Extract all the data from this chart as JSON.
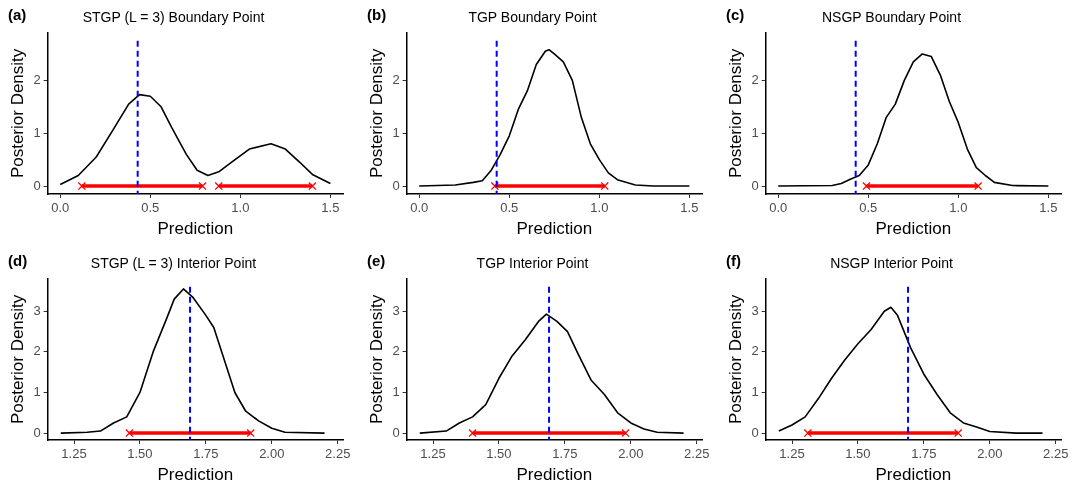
{
  "chart_data": [
    {
      "type": "line",
      "title": "STGP (L = 3) Boundary Point",
      "annotations": [
        "(a)"
      ],
      "xlabel": "Prediction",
      "ylabel": "Posterior Density",
      "xlim": [
        -0.07,
        1.57
      ],
      "xticks": [
        {
          "value": 0,
          "label": "0.0"
        },
        0.5,
        {
          "value": 1,
          "label": "1.0"
        },
        1.5
      ],
      "ylim": [
        -0.15,
        2.9
      ],
      "yticks": [
        0,
        1,
        2
      ],
      "grid": false,
      "legend": false,
      "series": [
        {
          "color": "#000000",
          "marker": "none",
          "x": [
            0,
            0.1,
            0.2,
            0.3,
            0.38,
            0.44,
            0.5,
            0.56,
            0.62,
            0.7,
            0.76,
            0.82,
            0.88,
            0.95,
            1.05,
            1.17,
            1.25,
            1.33,
            1.4,
            1.5
          ],
          "values": [
            0.03,
            0.2,
            0.55,
            1.1,
            1.55,
            1.73,
            1.7,
            1.5,
            1.1,
            0.6,
            0.3,
            0.2,
            0.27,
            0.45,
            0.7,
            0.8,
            0.7,
            0.45,
            0.22,
            0.05
          ]
        },
        {
          "color": "#ff0000",
          "marker": "cross",
          "x": [
            0.12,
            0.79
          ],
          "values": [
            0,
            0
          ]
        },
        {
          "color": "#ff0000",
          "marker": "cross",
          "x": [
            0.88,
            1.4
          ],
          "values": [
            0,
            0
          ]
        }
      ],
      "ref_lines": [
        {
          "axis": "x",
          "value": 0.43,
          "color": "#0000ff",
          "line_style": "dashed"
        }
      ]
    },
    {
      "type": "line",
      "title": "TGP Boundary Point",
      "annotations": [
        "(b)"
      ],
      "xlabel": "Prediction",
      "ylabel": "Posterior Density",
      "xlim": [
        -0.07,
        1.57
      ],
      "xticks": [
        {
          "value": 0,
          "label": "0.0"
        },
        0.5,
        {
          "value": 1,
          "label": "1.0"
        },
        1.5
      ],
      "ylim": [
        -0.15,
        2.9
      ],
      "yticks": [
        0,
        1,
        2
      ],
      "grid": false,
      "legend": false,
      "series": [
        {
          "color": "#000000",
          "marker": "none",
          "x": [
            0,
            0.2,
            0.3,
            0.35,
            0.4,
            0.45,
            0.5,
            0.55,
            0.6,
            0.65,
            0.7,
            0.72,
            0.75,
            0.8,
            0.85,
            0.9,
            0.95,
            1.0,
            1.05,
            1.1,
            1.2,
            1.3,
            1.5
          ],
          "values": [
            0,
            0.02,
            0.07,
            0.1,
            0.3,
            0.6,
            0.95,
            1.45,
            1.8,
            2.3,
            2.55,
            2.58,
            2.5,
            2.35,
            2.0,
            1.3,
            0.8,
            0.5,
            0.25,
            0.12,
            0.02,
            0,
            0
          ]
        },
        {
          "color": "#ff0000",
          "marker": "cross",
          "x": [
            0.42,
            1.03
          ],
          "values": [
            0,
            0
          ]
        }
      ],
      "ref_lines": [
        {
          "axis": "x",
          "value": 0.43,
          "color": "#0000ff",
          "line_style": "dashed"
        }
      ]
    },
    {
      "type": "line",
      "title": "NSGP Boundary Point",
      "annotations": [
        "(c)"
      ],
      "xlabel": "Prediction",
      "ylabel": "Posterior Density",
      "xlim": [
        -0.07,
        1.57
      ],
      "xticks": [
        {
          "value": 0,
          "label": "0.0"
        },
        0.5,
        {
          "value": 1,
          "label": "1.0"
        },
        1.5
      ],
      "ylim": [
        -0.15,
        2.9
      ],
      "yticks": [
        0,
        1,
        2
      ],
      "grid": false,
      "legend": false,
      "series": [
        {
          "color": "#000000",
          "marker": "none",
          "x": [
            0,
            0.3,
            0.35,
            0.4,
            0.45,
            0.5,
            0.55,
            0.6,
            0.65,
            0.7,
            0.75,
            0.8,
            0.85,
            0.9,
            0.95,
            1.0,
            1.05,
            1.1,
            1.15,
            1.2,
            1.3,
            1.5
          ],
          "values": [
            0,
            0.01,
            0.05,
            0.13,
            0.2,
            0.4,
            0.8,
            1.3,
            1.55,
            2.0,
            2.35,
            2.5,
            2.45,
            2.1,
            1.6,
            1.2,
            0.7,
            0.35,
            0.2,
            0.07,
            0.01,
            0
          ]
        },
        {
          "color": "#ff0000",
          "marker": "cross",
          "x": [
            0.49,
            1.11
          ],
          "values": [
            0,
            0
          ]
        }
      ],
      "ref_lines": [
        {
          "axis": "x",
          "value": 0.43,
          "color": "#0000ff",
          "line_style": "dashed"
        }
      ]
    },
    {
      "type": "line",
      "title": "STGP (L = 3) Interior Point",
      "annotations": [
        "(d)"
      ],
      "xlabel": "Prediction",
      "ylabel": "Posterior Density",
      "xlim": [
        1.15,
        2.27
      ],
      "xticks": [
        1.25,
        {
          "value": 1.5,
          "label": "1.50"
        },
        1.75,
        {
          "value": 2,
          "label": "2.00"
        },
        2.25
      ],
      "ylim": [
        -0.17,
        3.8
      ],
      "yticks": [
        0,
        1,
        2,
        3
      ],
      "grid": false,
      "legend": false,
      "series": [
        {
          "color": "#000000",
          "marker": "none",
          "x": [
            1.2,
            1.3,
            1.35,
            1.4,
            1.45,
            1.5,
            1.55,
            1.6,
            1.63,
            1.665,
            1.7,
            1.75,
            1.78,
            1.82,
            1.86,
            1.9,
            1.95,
            2.0,
            2.05,
            2.2
          ],
          "values": [
            0,
            0.02,
            0.05,
            0.25,
            0.4,
            1.0,
            2.0,
            2.8,
            3.3,
            3.55,
            3.35,
            2.9,
            2.6,
            1.8,
            1.0,
            0.55,
            0.3,
            0.12,
            0.02,
            0
          ]
        },
        {
          "color": "#ff0000",
          "marker": "cross",
          "x": [
            1.46,
            1.92
          ],
          "values": [
            0,
            0
          ]
        }
      ],
      "ref_lines": [
        {
          "axis": "x",
          "value": 1.69,
          "color": "#0000ff",
          "line_style": "dashed"
        }
      ]
    },
    {
      "type": "line",
      "title": "TGP Interior Point",
      "annotations": [
        "(e)"
      ],
      "xlabel": "Prediction",
      "ylabel": "Posterior Density",
      "xlim": [
        1.15,
        2.27
      ],
      "xticks": [
        1.25,
        {
          "value": 1.5,
          "label": "1.50"
        },
        1.75,
        {
          "value": 2,
          "label": "2.00"
        },
        2.25
      ],
      "ylim": [
        -0.17,
        3.8
      ],
      "yticks": [
        0,
        1,
        2,
        3
      ],
      "grid": false,
      "legend": false,
      "series": [
        {
          "color": "#000000",
          "marker": "none",
          "x": [
            1.2,
            1.3,
            1.35,
            1.4,
            1.45,
            1.5,
            1.55,
            1.6,
            1.65,
            1.68,
            1.72,
            1.76,
            1.8,
            1.85,
            1.9,
            1.95,
            2.0,
            2.05,
            2.1,
            2.2
          ],
          "values": [
            0,
            0.05,
            0.25,
            0.4,
            0.7,
            1.35,
            1.9,
            2.3,
            2.75,
            2.93,
            2.75,
            2.5,
            1.95,
            1.3,
            0.95,
            0.5,
            0.25,
            0.1,
            0.02,
            0
          ]
        },
        {
          "color": "#ff0000",
          "marker": "cross",
          "x": [
            1.4,
            1.98
          ],
          "values": [
            0,
            0
          ]
        }
      ],
      "ref_lines": [
        {
          "axis": "x",
          "value": 1.69,
          "color": "#0000ff",
          "line_style": "dashed"
        }
      ]
    },
    {
      "type": "line",
      "title": "NSGP Interior Point",
      "annotations": [
        "(f)"
      ],
      "xlabel": "Prediction",
      "ylabel": "Posterior Density",
      "xlim": [
        1.15,
        2.27
      ],
      "xticks": [
        1.25,
        {
          "value": 1.5,
          "label": "1.50"
        },
        1.75,
        {
          "value": 2,
          "label": "2.00"
        },
        2.25
      ],
      "ylim": [
        -0.17,
        3.8
      ],
      "yticks": [
        0,
        1,
        2,
        3
      ],
      "grid": false,
      "legend": false,
      "series": [
        {
          "color": "#000000",
          "marker": "none",
          "x": [
            1.2,
            1.25,
            1.3,
            1.35,
            1.4,
            1.45,
            1.5,
            1.55,
            1.6,
            1.625,
            1.65,
            1.7,
            1.75,
            1.8,
            1.85,
            1.9,
            1.95,
            2.0,
            2.1,
            2.2
          ],
          "values": [
            0.05,
            0.2,
            0.4,
            0.85,
            1.35,
            1.8,
            2.2,
            2.55,
            3.0,
            3.1,
            2.9,
            2.1,
            1.45,
            0.95,
            0.5,
            0.25,
            0.15,
            0.04,
            0,
            0
          ]
        },
        {
          "color": "#ff0000",
          "marker": "cross",
          "x": [
            1.31,
            1.88
          ],
          "values": [
            0,
            0
          ]
        }
      ],
      "ref_lines": [
        {
          "axis": "x",
          "value": 1.69,
          "color": "#0000ff",
          "line_style": "dashed"
        }
      ]
    }
  ]
}
